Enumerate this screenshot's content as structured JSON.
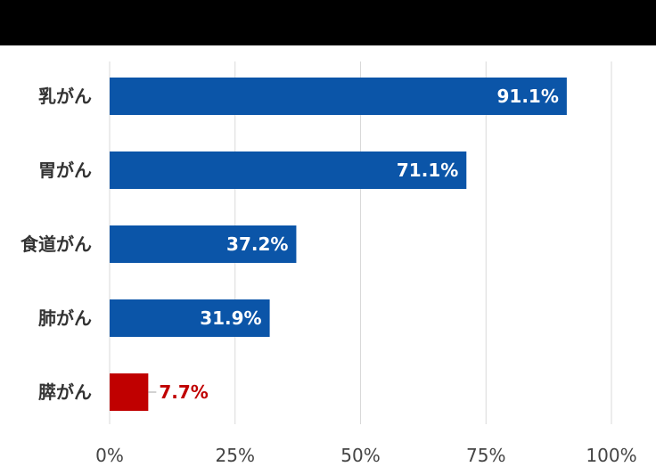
{
  "chart_data": {
    "type": "bar",
    "orientation": "horizontal",
    "categories": [
      "乳がん",
      "胃がん",
      "食道がん",
      "肺がん",
      "膵がん"
    ],
    "values": [
      91.1,
      71.1,
      37.2,
      31.9,
      7.7
    ],
    "data_labels": [
      "91.1%",
      "71.1%",
      "37.2%",
      "31.9%",
      "7.7%"
    ],
    "xlim": [
      0,
      100
    ],
    "x_ticks": [
      0,
      25,
      50,
      75,
      100
    ],
    "x_tick_labels": [
      "0%",
      "25%",
      "50%",
      "75%",
      "100%"
    ],
    "grid": true,
    "legend": false,
    "colors": {
      "default_bar": "#0b55a8",
      "highlight_bar": "#c00000",
      "inside_label": "#ffffff",
      "outside_label": "#c00000",
      "grid": "#d9d9d9"
    },
    "highlight_index": 4
  }
}
